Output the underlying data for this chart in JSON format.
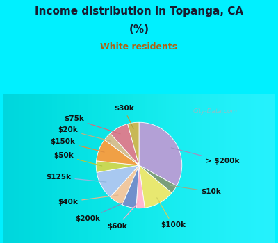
{
  "title_line1": "Income distribution in Topanga, CA",
  "title_line2": "(%)",
  "subtitle": "White residents",
  "labels": [
    "> $200k",
    "$10k",
    "$100k",
    "$60k",
    "$200k",
    "$40k",
    "$125k",
    "$50k",
    "$150k",
    "$20k",
    "$75k",
    "$30k"
  ],
  "sizes": [
    31,
    3,
    11,
    3,
    5,
    5,
    10,
    4,
    8,
    3,
    7,
    4
  ],
  "colors": [
    "#b3a0d6",
    "#7a9e7a",
    "#e8e870",
    "#ffb8d0",
    "#7090cc",
    "#f0c8a0",
    "#a8c8f0",
    "#c8d855",
    "#f0a045",
    "#d4c090",
    "#d88090",
    "#c8b855"
  ],
  "bg_top": "#00f0ff",
  "panel_color": "#e0f5e8",
  "title_color": "#1a1a2e",
  "subtitle_color": "#b06010",
  "watermark_color": "#a0b8c0",
  "label_font_size": 7.5,
  "title_font_size": 11,
  "subtitle_font_size": 9
}
